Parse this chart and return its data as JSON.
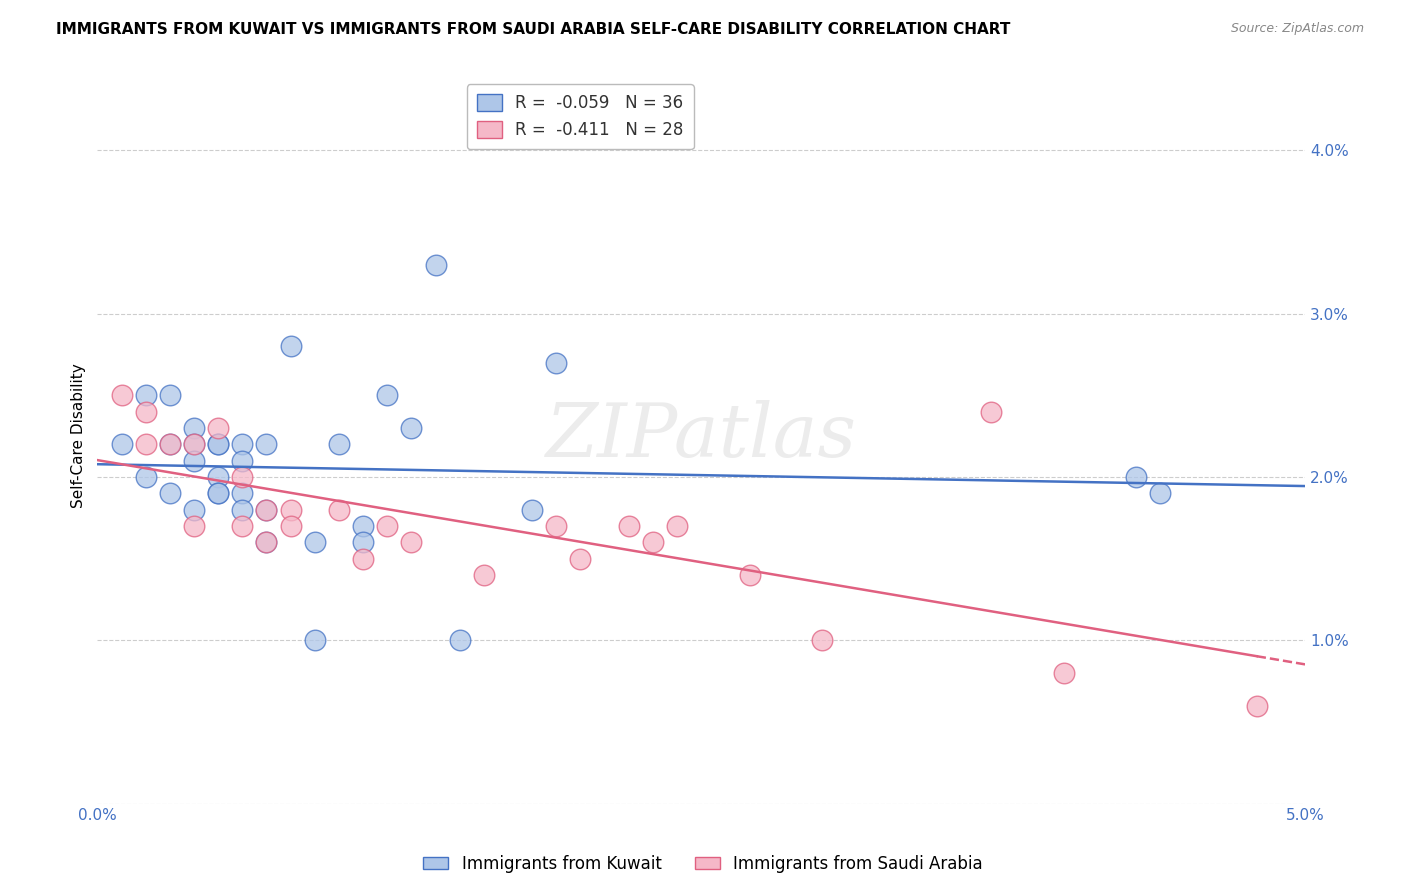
{
  "title": "IMMIGRANTS FROM KUWAIT VS IMMIGRANTS FROM SAUDI ARABIA SELF-CARE DISABILITY CORRELATION CHART",
  "source": "Source: ZipAtlas.com",
  "ylabel": "Self-Care Disability",
  "x_min": 0.0,
  "x_max": 0.05,
  "y_min": 0.0,
  "y_max": 0.045,
  "x_ticks": [
    0.0,
    0.01,
    0.02,
    0.03,
    0.04,
    0.05
  ],
  "x_tick_labels": [
    "0.0%",
    "",
    "",
    "",
    "",
    "5.0%"
  ],
  "y_ticks": [
    0.0,
    0.01,
    0.02,
    0.03,
    0.04
  ],
  "y_tick_labels_right": [
    "",
    "1.0%",
    "2.0%",
    "3.0%",
    "4.0%"
  ],
  "legend_r_kuwait": "R =  -0.059",
  "legend_n_kuwait": "N = 36",
  "legend_r_saudi": "R =  -0.411",
  "legend_n_saudi": "N = 28",
  "kuwait_color": "#aec6e8",
  "saudi_color": "#f5b8c8",
  "kuwait_line_color": "#4472c4",
  "saudi_line_color": "#e06080",
  "background_color": "#ffffff",
  "grid_color": "#c8c8c8",
  "kuwait_x": [
    0.001,
    0.002,
    0.002,
    0.003,
    0.003,
    0.003,
    0.004,
    0.004,
    0.004,
    0.004,
    0.005,
    0.005,
    0.005,
    0.005,
    0.005,
    0.006,
    0.006,
    0.006,
    0.006,
    0.007,
    0.007,
    0.007,
    0.008,
    0.009,
    0.009,
    0.01,
    0.011,
    0.011,
    0.012,
    0.013,
    0.014,
    0.015,
    0.018,
    0.019,
    0.043,
    0.044
  ],
  "kuwait_y": [
    0.022,
    0.025,
    0.02,
    0.025,
    0.022,
    0.019,
    0.023,
    0.022,
    0.021,
    0.018,
    0.022,
    0.02,
    0.019,
    0.022,
    0.019,
    0.022,
    0.021,
    0.019,
    0.018,
    0.022,
    0.018,
    0.016,
    0.028,
    0.016,
    0.01,
    0.022,
    0.017,
    0.016,
    0.025,
    0.023,
    0.033,
    0.01,
    0.018,
    0.027,
    0.02,
    0.019
  ],
  "saudi_x": [
    0.001,
    0.002,
    0.002,
    0.003,
    0.004,
    0.004,
    0.005,
    0.006,
    0.006,
    0.007,
    0.007,
    0.008,
    0.008,
    0.01,
    0.011,
    0.012,
    0.013,
    0.016,
    0.019,
    0.02,
    0.022,
    0.023,
    0.024,
    0.027,
    0.03,
    0.037,
    0.04,
    0.048
  ],
  "saudi_y": [
    0.025,
    0.024,
    0.022,
    0.022,
    0.022,
    0.017,
    0.023,
    0.02,
    0.017,
    0.018,
    0.016,
    0.018,
    0.017,
    0.018,
    0.015,
    0.017,
    0.016,
    0.014,
    0.017,
    0.015,
    0.017,
    0.016,
    0.017,
    0.014,
    0.01,
    0.024,
    0.008,
    0.006
  ],
  "watermark": "ZIPatlas",
  "title_fontsize": 11,
  "axis_label_fontsize": 11,
  "tick_fontsize": 11,
  "legend_fontsize": 12,
  "marker_size": 220
}
